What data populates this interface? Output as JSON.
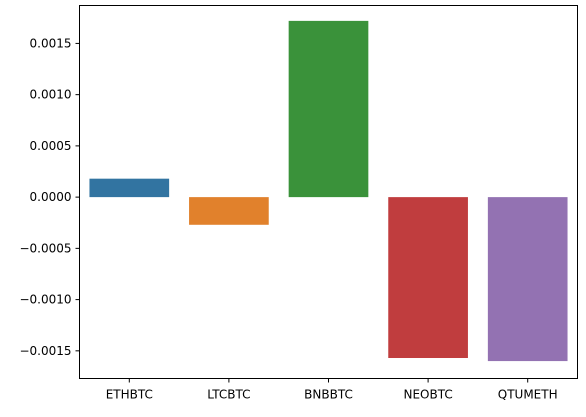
{
  "chart_data": {
    "type": "bar",
    "title": "",
    "xlabel": "",
    "ylabel": "",
    "categories": [
      "ETHBTC",
      "LTCBTC",
      "BNBBTC",
      "NEOBTC",
      "QTUMETH"
    ],
    "values": [
      0.00018,
      -0.00027,
      0.00172,
      -0.00157,
      -0.0016
    ],
    "colors": [
      "#3274a1",
      "#e1812c",
      "#3a923a",
      "#c03d3e",
      "#9372b2"
    ],
    "ylim": [
      -0.00177,
      0.00187
    ],
    "yticks": [
      0.0015,
      0.001,
      0.0005,
      0.0,
      -0.0005,
      -0.001,
      -0.0015
    ],
    "ytick_labels": [
      "0.0015",
      "0.0010",
      "0.0005",
      "0.0000",
      "−0.0005",
      "−0.0010",
      "−0.0015"
    ],
    "grid": false,
    "legend": "none"
  }
}
